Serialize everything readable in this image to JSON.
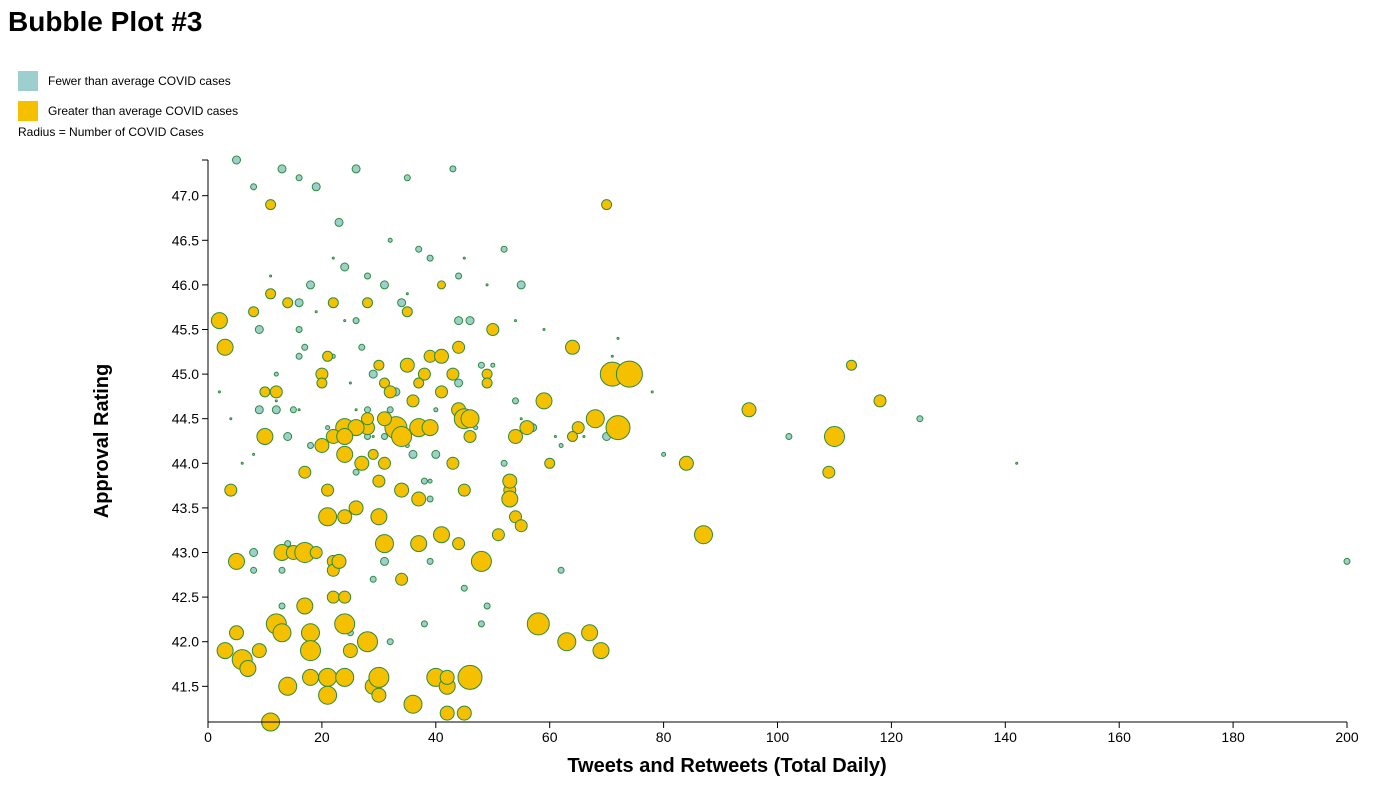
{
  "title": "Bubble Plot #3",
  "legend": {
    "fewer_label": "Fewer than average COVID cases",
    "greater_label": "Greater than average COVID cases",
    "radius_note": "Radius = Number of COVID Cases",
    "fewer_color": "#9ecfcf",
    "greater_color": "#f5c000"
  },
  "chart_data": {
    "type": "scatter",
    "title": "Bubble Plot #3",
    "xlabel": "Tweets and Retweets (Total Daily)",
    "ylabel": "Approval Rating",
    "xlim": [
      0,
      200
    ],
    "ylim": [
      41.1,
      47.4
    ],
    "x_ticks": [
      0,
      20,
      40,
      60,
      80,
      100,
      120,
      140,
      160,
      180,
      200
    ],
    "y_ticks": [
      41.5,
      42.0,
      42.5,
      43.0,
      43.5,
      44.0,
      44.5,
      45.0,
      45.5,
      46.0,
      46.5,
      47.0
    ],
    "grid": false,
    "legend_position": "top-left",
    "size_encoding": "Number of COVID Cases",
    "colors": {
      "fewer": "#9ecfcf",
      "greater": "#f5c000",
      "stroke": "#2e8b3a"
    },
    "series": [
      {
        "name": "Fewer than average COVID cases",
        "points": [
          [
            5,
            47.4,
            4
          ],
          [
            13,
            47.3,
            4
          ],
          [
            26,
            47.3,
            4
          ],
          [
            43,
            47.3,
            3
          ],
          [
            16,
            47.2,
            3
          ],
          [
            35,
            47.2,
            3
          ],
          [
            8,
            47.1,
            3
          ],
          [
            19,
            47.1,
            4
          ],
          [
            23,
            46.7,
            4
          ],
          [
            32,
            46.5,
            2
          ],
          [
            24,
            46.2,
            4
          ],
          [
            37,
            46.4,
            3
          ],
          [
            39,
            46.3,
            3
          ],
          [
            52,
            46.4,
            3
          ],
          [
            44,
            46.1,
            3
          ],
          [
            28,
            46.1,
            3
          ],
          [
            18,
            46.0,
            4
          ],
          [
            31,
            46.0,
            4
          ],
          [
            55,
            46.0,
            4
          ],
          [
            16,
            45.8,
            4
          ],
          [
            34,
            45.8,
            4
          ],
          [
            9,
            45.5,
            4
          ],
          [
            16,
            45.5,
            3
          ],
          [
            26,
            45.6,
            3
          ],
          [
            44,
            45.6,
            4
          ],
          [
            46,
            45.6,
            4
          ],
          [
            64,
            45.3,
            6
          ],
          [
            16,
            45.2,
            3
          ],
          [
            29,
            45.0,
            4
          ],
          [
            31,
            44.9,
            4
          ],
          [
            33,
            44.8,
            4
          ],
          [
            44,
            44.9,
            4
          ],
          [
            48,
            45.1,
            3
          ],
          [
            9,
            44.6,
            4
          ],
          [
            12,
            44.6,
            4
          ],
          [
            15,
            44.6,
            3
          ],
          [
            28,
            44.6,
            3
          ],
          [
            32,
            44.6,
            3
          ],
          [
            54,
            44.7,
            3
          ],
          [
            57,
            44.4,
            4
          ],
          [
            14,
            44.3,
            4
          ],
          [
            18,
            44.2,
            3
          ],
          [
            28,
            44.3,
            3
          ],
          [
            31,
            44.3,
            3
          ],
          [
            36,
            44.1,
            4
          ],
          [
            40,
            44.1,
            4
          ],
          [
            52,
            44.0,
            3
          ],
          [
            62,
            44.2,
            2
          ],
          [
            70,
            44.3,
            4
          ],
          [
            80,
            44.1,
            2
          ],
          [
            102,
            44.3,
            3
          ],
          [
            125,
            44.5,
            3
          ],
          [
            142,
            44.0,
            1
          ],
          [
            26,
            43.9,
            3
          ],
          [
            38,
            43.8,
            3
          ],
          [
            39,
            43.6,
            3
          ],
          [
            8,
            43.0,
            4
          ],
          [
            14,
            43.1,
            3
          ],
          [
            31,
            42.9,
            4
          ],
          [
            39,
            42.9,
            3
          ],
          [
            86,
            43.2,
            3
          ],
          [
            200,
            42.9,
            3
          ],
          [
            8,
            42.8,
            3
          ],
          [
            13,
            42.8,
            3
          ],
          [
            29,
            42.7,
            3
          ],
          [
            62,
            42.8,
            3
          ],
          [
            13,
            42.4,
            3
          ],
          [
            45,
            42.6,
            3
          ],
          [
            49,
            42.4,
            3
          ],
          [
            38,
            42.2,
            3
          ],
          [
            48,
            42.2,
            3
          ],
          [
            25,
            42.1,
            3
          ],
          [
            32,
            42.0,
            3
          ],
          [
            17,
            45.3,
            3
          ],
          [
            21,
            44.4,
            2
          ],
          [
            35,
            44.2,
            2
          ],
          [
            47,
            44.4,
            2
          ],
          [
            39,
            43.8,
            2
          ],
          [
            4,
            45.3,
            2
          ],
          [
            2,
            44.8,
            1
          ],
          [
            12,
            45.0,
            2
          ],
          [
            22,
            45.2,
            2
          ],
          [
            27,
            45.3,
            3
          ],
          [
            40,
            44.6,
            2
          ],
          [
            50,
            45.1,
            2
          ],
          [
            72,
            45.4,
            1
          ],
          [
            78,
            44.8,
            1
          ],
          [
            59,
            45.5,
            1
          ],
          [
            54,
            45.6,
            1
          ],
          [
            4,
            44.5,
            1
          ],
          [
            6,
            44.0,
            1
          ],
          [
            8,
            44.1,
            1
          ],
          [
            11,
            46.1,
            1
          ],
          [
            22,
            46.3,
            1
          ],
          [
            45,
            46.3,
            1
          ],
          [
            49,
            46.0,
            1
          ],
          [
            35,
            45.9,
            1
          ],
          [
            19,
            45.7,
            1
          ],
          [
            24,
            45.6,
            1
          ],
          [
            12,
            44.7,
            1
          ],
          [
            16,
            44.6,
            1
          ],
          [
            26,
            44.6,
            1
          ],
          [
            29,
            44.3,
            1
          ],
          [
            33,
            44.5,
            1
          ],
          [
            55,
            44.5,
            1
          ],
          [
            66,
            44.3,
            1
          ],
          [
            67,
            44.5,
            1
          ],
          [
            71,
            45.2,
            1
          ],
          [
            61,
            44.3,
            1
          ],
          [
            25,
            44.9,
            1
          ],
          [
            30,
            45.1,
            1
          ]
        ]
      },
      {
        "name": "Greater than average COVID cases",
        "points": [
          [
            11,
            46.9,
            5
          ],
          [
            70,
            46.9,
            5
          ],
          [
            41,
            46.0,
            4
          ],
          [
            11,
            45.9,
            5
          ],
          [
            14,
            45.8,
            5
          ],
          [
            22,
            45.8,
            5
          ],
          [
            28,
            45.8,
            5
          ],
          [
            35,
            45.7,
            5
          ],
          [
            8,
            45.7,
            5
          ],
          [
            2,
            45.6,
            8
          ],
          [
            3,
            45.3,
            8
          ],
          [
            44,
            45.3,
            6
          ],
          [
            50,
            45.5,
            6
          ],
          [
            21,
            45.2,
            5
          ],
          [
            30,
            45.1,
            5
          ],
          [
            35,
            45.1,
            7
          ],
          [
            39,
            45.2,
            6
          ],
          [
            41,
            45.2,
            7
          ],
          [
            20,
            45.0,
            6
          ],
          [
            38,
            45.0,
            6
          ],
          [
            43,
            45.0,
            6
          ],
          [
            49,
            45.0,
            5
          ],
          [
            64,
            45.3,
            7
          ],
          [
            71,
            45.0,
            12
          ],
          [
            74,
            45.0,
            13
          ],
          [
            113,
            45.1,
            5
          ],
          [
            10,
            44.8,
            5
          ],
          [
            12,
            44.8,
            6
          ],
          [
            20,
            44.9,
            5
          ],
          [
            31,
            44.9,
            5
          ],
          [
            32,
            44.8,
            6
          ],
          [
            36,
            44.7,
            6
          ],
          [
            37,
            44.9,
            5
          ],
          [
            41,
            44.8,
            6
          ],
          [
            49,
            44.9,
            5
          ],
          [
            59,
            44.7,
            8
          ],
          [
            118,
            44.7,
            6
          ],
          [
            44,
            44.6,
            7
          ],
          [
            45,
            44.5,
            10
          ],
          [
            46,
            44.5,
            9
          ],
          [
            28,
            44.4,
            7
          ],
          [
            33,
            44.4,
            11
          ],
          [
            34,
            44.3,
            10
          ],
          [
            37,
            44.4,
            9
          ],
          [
            39,
            44.4,
            8
          ],
          [
            24,
            44.4,
            9
          ],
          [
            26,
            44.4,
            8
          ],
          [
            28,
            44.5,
            6
          ],
          [
            31,
            44.5,
            7
          ],
          [
            68,
            44.5,
            9
          ],
          [
            72,
            44.4,
            12
          ],
          [
            65,
            44.4,
            6
          ],
          [
            10,
            44.3,
            8
          ],
          [
            20,
            44.2,
            7
          ],
          [
            22,
            44.3,
            7
          ],
          [
            24,
            44.3,
            8
          ],
          [
            29,
            44.1,
            5
          ],
          [
            46,
            44.3,
            6
          ],
          [
            54,
            44.3,
            7
          ],
          [
            56,
            44.4,
            7
          ],
          [
            64,
            44.3,
            5
          ],
          [
            95,
            44.6,
            7
          ],
          [
            110,
            44.3,
            10
          ],
          [
            24,
            44.1,
            8
          ],
          [
            27,
            44.0,
            7
          ],
          [
            31,
            44.0,
            6
          ],
          [
            43,
            44.0,
            6
          ],
          [
            60,
            44.0,
            5
          ],
          [
            84,
            44.0,
            7
          ],
          [
            17,
            43.9,
            6
          ],
          [
            4,
            43.7,
            6
          ],
          [
            21,
            43.7,
            6
          ],
          [
            34,
            43.7,
            7
          ],
          [
            37,
            43.6,
            7
          ],
          [
            45,
            43.7,
            6
          ],
          [
            53,
            43.7,
            6
          ],
          [
            53,
            43.8,
            7
          ],
          [
            30,
            43.8,
            6
          ],
          [
            109,
            43.9,
            6
          ],
          [
            21,
            43.4,
            9
          ],
          [
            24,
            43.4,
            7
          ],
          [
            26,
            43.5,
            7
          ],
          [
            30,
            43.4,
            8
          ],
          [
            53,
            43.6,
            8
          ],
          [
            54,
            43.4,
            6
          ],
          [
            55,
            43.3,
            6
          ],
          [
            31,
            43.1,
            9
          ],
          [
            37,
            43.1,
            8
          ],
          [
            41,
            43.2,
            8
          ],
          [
            44,
            43.1,
            6
          ],
          [
            51,
            43.2,
            6
          ],
          [
            87,
            43.2,
            9
          ],
          [
            5,
            42.9,
            8
          ],
          [
            13,
            43.0,
            8
          ],
          [
            15,
            43.0,
            7
          ],
          [
            17,
            43.0,
            10
          ],
          [
            19,
            43.0,
            6
          ],
          [
            22,
            42.9,
            6
          ],
          [
            22,
            42.8,
            6
          ],
          [
            23,
            42.9,
            7
          ],
          [
            48,
            42.9,
            10
          ],
          [
            34,
            42.7,
            6
          ],
          [
            22,
            42.5,
            6
          ],
          [
            24,
            42.5,
            6
          ],
          [
            17,
            42.4,
            8
          ],
          [
            12,
            42.2,
            10
          ],
          [
            13,
            42.1,
            9
          ],
          [
            18,
            42.1,
            9
          ],
          [
            24,
            42.2,
            10
          ],
          [
            5,
            42.1,
            7
          ],
          [
            58,
            42.2,
            11
          ],
          [
            67,
            42.1,
            8
          ],
          [
            63,
            42.0,
            9
          ],
          [
            28,
            42.0,
            10
          ],
          [
            3,
            41.9,
            8
          ],
          [
            6,
            41.8,
            10
          ],
          [
            9,
            41.9,
            7
          ],
          [
            18,
            41.9,
            10
          ],
          [
            25,
            41.9,
            7
          ],
          [
            69,
            41.9,
            8
          ],
          [
            7,
            41.7,
            8
          ],
          [
            14,
            41.5,
            9
          ],
          [
            18,
            41.6,
            8
          ],
          [
            21,
            41.6,
            9
          ],
          [
            21,
            41.4,
            9
          ],
          [
            24,
            41.6,
            9
          ],
          [
            29,
            41.5,
            8
          ],
          [
            30,
            41.6,
            10
          ],
          [
            30,
            41.4,
            7
          ],
          [
            40,
            41.6,
            9
          ],
          [
            42,
            41.5,
            8
          ],
          [
            42,
            41.6,
            7
          ],
          [
            46,
            41.6,
            12
          ],
          [
            36,
            41.3,
            9
          ],
          [
            42,
            41.2,
            7
          ],
          [
            45,
            41.2,
            7
          ],
          [
            11,
            41.1,
            9
          ]
        ]
      }
    ]
  }
}
